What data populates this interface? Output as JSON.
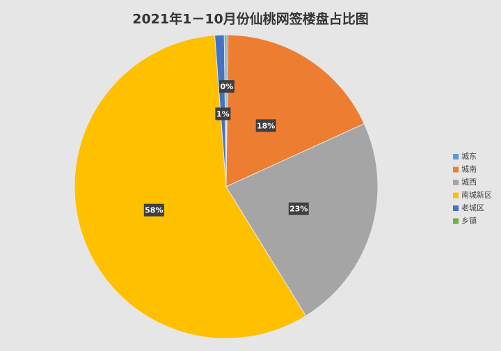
{
  "chart_data": {
    "type": "pie",
    "title": "2021年1－10月份仙桃网签楼盘占比图",
    "categories": [
      "城东",
      "城南",
      "城西",
      "南城新区",
      "老城区",
      "乡镇"
    ],
    "values": [
      0.2,
      18,
      23,
      57.6,
      1.0,
      0.2
    ],
    "value_labels": [
      "0%",
      "18%",
      "23%",
      "58%",
      "1%",
      null
    ],
    "colors": [
      "#5b9bd5",
      "#ed7d31",
      "#a5a5a5",
      "#ffc000",
      "#4472c4",
      "#70ad47"
    ],
    "legend": "right"
  }
}
